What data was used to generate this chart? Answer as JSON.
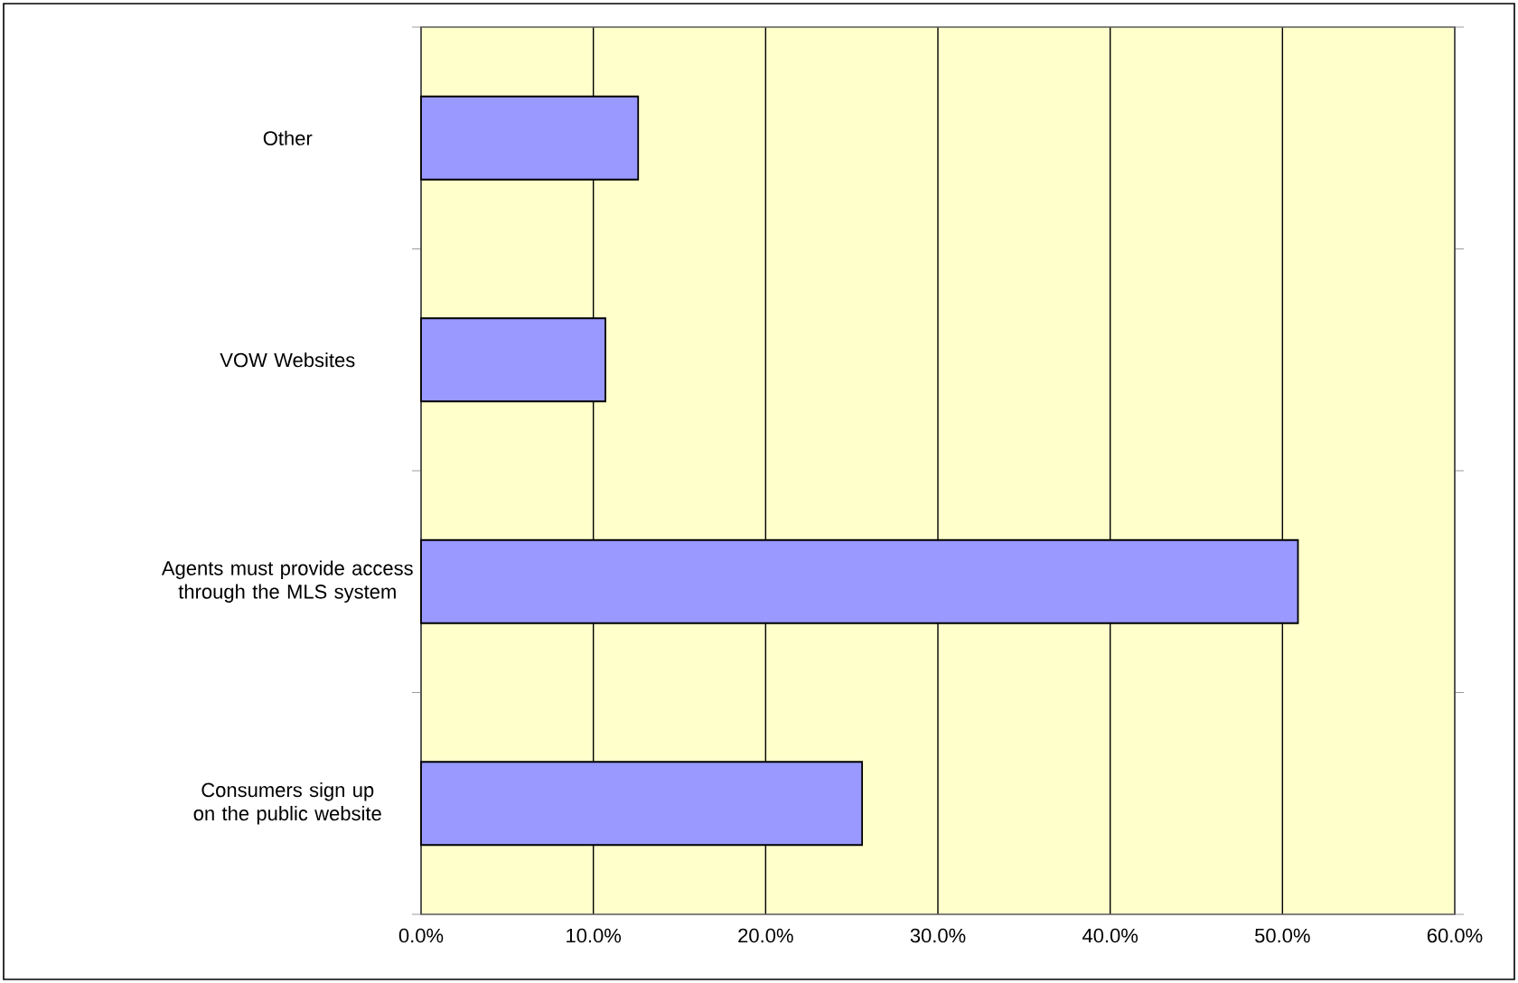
{
  "chart_data": {
    "type": "bar",
    "orientation": "horizontal",
    "categories": [
      "Other",
      "VOW Websites",
      "Agents must provide access through the MLS system",
      "Consumers sign up on the public website"
    ],
    "values": [
      12.6,
      10.7,
      50.9,
      25.6
    ],
    "color": "#9999ff",
    "xlim": [
      0,
      60
    ],
    "xticks": [
      {
        "value": 0,
        "label": "0.0%"
      },
      {
        "value": 10,
        "label": "10.0%"
      },
      {
        "value": 20,
        "label": "20.0%"
      },
      {
        "value": 30,
        "label": "30.0%"
      },
      {
        "value": 40,
        "label": "40.0%"
      },
      {
        "value": 50,
        "label": "50.0%"
      },
      {
        "value": 60,
        "label": "60.0%"
      }
    ],
    "grid": "x"
  }
}
